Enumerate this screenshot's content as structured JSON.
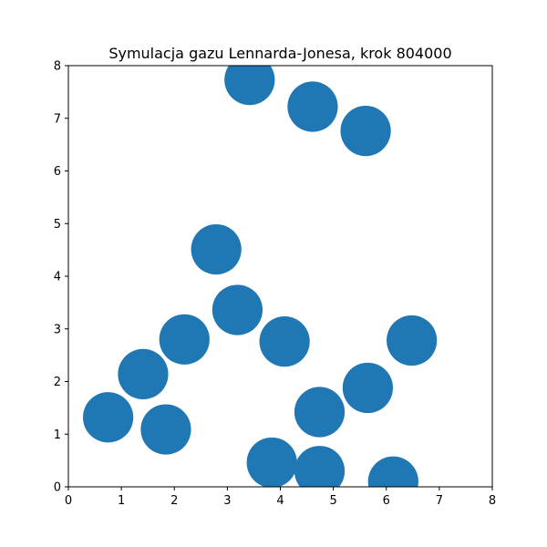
{
  "chart_data": {
    "type": "scatter",
    "title": "Symulacja gazu Lennarda-Jonesa, krok 804000",
    "xlabel": "",
    "ylabel": "",
    "xlim": [
      0,
      8
    ],
    "ylim": [
      0,
      8
    ],
    "xticks": [
      "0",
      "1",
      "2",
      "3",
      "4",
      "5",
      "6",
      "7",
      "8"
    ],
    "yticks": [
      "0",
      "1",
      "2",
      "3",
      "4",
      "5",
      "6",
      "7",
      "8"
    ],
    "grid": false,
    "marker_color": "#1f77b4",
    "marker_diameter_data_units": 0.95,
    "points": [
      {
        "x": 3.42,
        "y": 7.73
      },
      {
        "x": 4.61,
        "y": 7.22
      },
      {
        "x": 5.61,
        "y": 6.76
      },
      {
        "x": 2.79,
        "y": 4.51
      },
      {
        "x": 3.19,
        "y": 3.36
      },
      {
        "x": 2.19,
        "y": 2.8
      },
      {
        "x": 4.08,
        "y": 2.76
      },
      {
        "x": 6.48,
        "y": 2.78
      },
      {
        "x": 1.41,
        "y": 2.14
      },
      {
        "x": 5.65,
        "y": 1.88
      },
      {
        "x": 0.75,
        "y": 1.32
      },
      {
        "x": 1.84,
        "y": 1.09
      },
      {
        "x": 4.74,
        "y": 1.42
      },
      {
        "x": 3.84,
        "y": 0.46
      },
      {
        "x": 4.74,
        "y": 0.3
      },
      {
        "x": 6.13,
        "y": 0.1
      }
    ]
  }
}
